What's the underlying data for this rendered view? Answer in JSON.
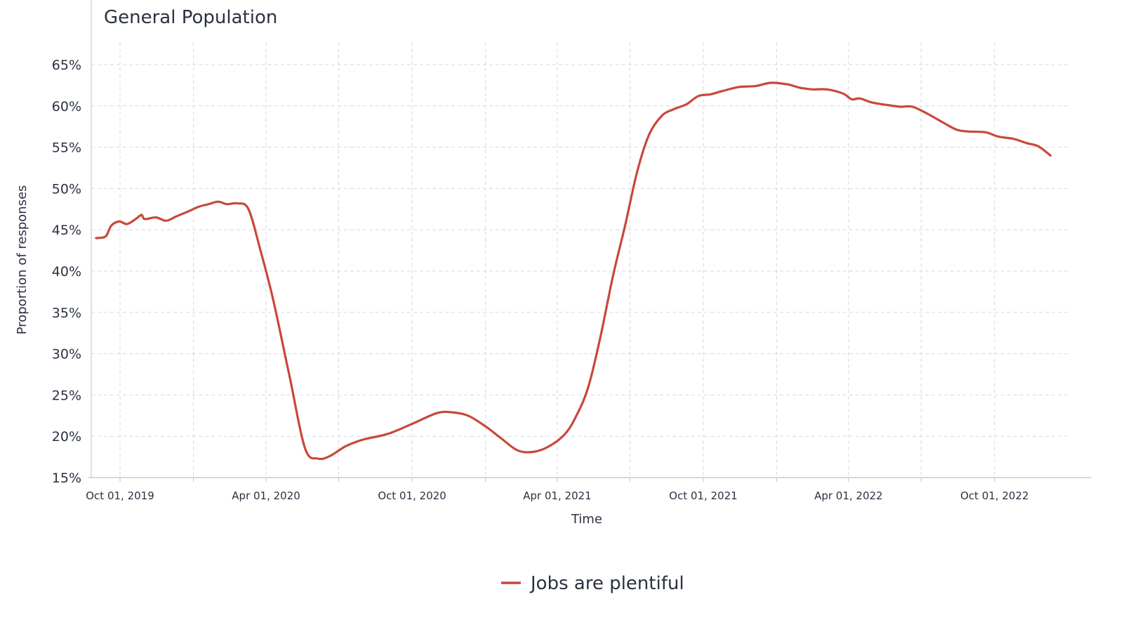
{
  "chart_data": {
    "type": "line",
    "title": "General Population",
    "xlabel": "Time",
    "ylabel": "Proportion of responses",
    "x_range": [
      "2019-08-20",
      "2023-02-15"
    ],
    "ylim": [
      15,
      65
    ],
    "y_ticks": [
      15,
      20,
      25,
      30,
      35,
      40,
      45,
      50,
      55,
      60,
      65
    ],
    "y_tick_labels": [
      "15%",
      "20%",
      "25%",
      "30%",
      "35%",
      "40%",
      "45%",
      "50%",
      "55%",
      "60%",
      "65%"
    ],
    "x_tick_labels": [
      "Oct 01, 2019",
      "Apr 01, 2020",
      "Oct 01, 2020",
      "Apr 01, 2021",
      "Oct 01, 2021",
      "Apr 01, 2022",
      "Oct 01, 2022"
    ],
    "x_tick_dates": [
      "2019-10-01",
      "2020-04-01",
      "2020-10-01",
      "2021-04-01",
      "2021-10-01",
      "2022-04-01",
      "2022-10-01"
    ],
    "x_grid_dates": [
      "2019-10-01",
      "2020-01-01",
      "2020-04-01",
      "2020-07-01",
      "2020-10-01",
      "2021-01-01",
      "2021-04-01",
      "2021-07-01",
      "2021-10-01",
      "2022-01-01",
      "2022-04-01",
      "2022-07-01",
      "2022-10-01"
    ],
    "grid": true,
    "legend_position": "bottom-center",
    "colors": {
      "series": "#c9483a",
      "grid": "#d4d9e0",
      "axis": "#c5ccd6",
      "text": "#2a3142"
    },
    "series": [
      {
        "name": "Jobs are plentiful",
        "points": [
          [
            "2019-09-01",
            44.0
          ],
          [
            "2019-09-13",
            44.2
          ],
          [
            "2019-09-20",
            45.5
          ],
          [
            "2019-09-30",
            46.0
          ],
          [
            "2019-10-10",
            45.7
          ],
          [
            "2019-10-22",
            46.4
          ],
          [
            "2019-10-28",
            46.8
          ],
          [
            "2019-11-01",
            46.3
          ],
          [
            "2019-11-15",
            46.5
          ],
          [
            "2019-11-28",
            46.1
          ],
          [
            "2019-12-10",
            46.6
          ],
          [
            "2019-12-25",
            47.2
          ],
          [
            "2020-01-08",
            47.8
          ],
          [
            "2020-01-20",
            48.1
          ],
          [
            "2020-02-01",
            48.4
          ],
          [
            "2020-02-12",
            48.1
          ],
          [
            "2020-02-25",
            48.2
          ],
          [
            "2020-03-10",
            47.5
          ],
          [
            "2020-03-25",
            42.5
          ],
          [
            "2020-04-10",
            36.5
          ],
          [
            "2020-05-01",
            27.0
          ],
          [
            "2020-05-20",
            18.5
          ],
          [
            "2020-06-05",
            17.3
          ],
          [
            "2020-06-20",
            17.6
          ],
          [
            "2020-07-10",
            18.8
          ],
          [
            "2020-08-01",
            19.6
          ],
          [
            "2020-09-01",
            20.3
          ],
          [
            "2020-10-01",
            21.5
          ],
          [
            "2020-11-01",
            22.8
          ],
          [
            "2020-11-20",
            22.9
          ],
          [
            "2020-12-10",
            22.5
          ],
          [
            "2021-01-01",
            21.2
          ],
          [
            "2021-01-20",
            19.8
          ],
          [
            "2021-02-10",
            18.3
          ],
          [
            "2021-03-01",
            18.1
          ],
          [
            "2021-03-20",
            18.7
          ],
          [
            "2021-04-10",
            20.2
          ],
          [
            "2021-04-25",
            22.5
          ],
          [
            "2021-05-10",
            26.0
          ],
          [
            "2021-05-25",
            32.0
          ],
          [
            "2021-06-10",
            39.5
          ],
          [
            "2021-06-25",
            45.5
          ],
          [
            "2021-07-10",
            52.0
          ],
          [
            "2021-07-25",
            56.5
          ],
          [
            "2021-08-10",
            58.8
          ],
          [
            "2021-08-25",
            59.6
          ],
          [
            "2021-09-10",
            60.2
          ],
          [
            "2021-09-25",
            61.2
          ],
          [
            "2021-10-10",
            61.4
          ],
          [
            "2021-10-25",
            61.8
          ],
          [
            "2021-11-15",
            62.3
          ],
          [
            "2021-12-05",
            62.4
          ],
          [
            "2021-12-25",
            62.8
          ],
          [
            "2022-01-15",
            62.6
          ],
          [
            "2022-01-30",
            62.2
          ],
          [
            "2022-02-15",
            62.0
          ],
          [
            "2022-03-05",
            62.0
          ],
          [
            "2022-03-25",
            61.5
          ],
          [
            "2022-04-05",
            60.8
          ],
          [
            "2022-04-15",
            60.9
          ],
          [
            "2022-05-01",
            60.4
          ],
          [
            "2022-05-20",
            60.1
          ],
          [
            "2022-06-05",
            59.9
          ],
          [
            "2022-06-20",
            59.9
          ],
          [
            "2022-07-10",
            59.0
          ],
          [
            "2022-07-30",
            57.9
          ],
          [
            "2022-08-15",
            57.1
          ],
          [
            "2022-08-30",
            56.9
          ],
          [
            "2022-09-20",
            56.8
          ],
          [
            "2022-10-05",
            56.3
          ],
          [
            "2022-10-25",
            56.0
          ],
          [
            "2022-11-10",
            55.5
          ],
          [
            "2022-11-25",
            55.1
          ],
          [
            "2022-12-10",
            54.0
          ]
        ]
      }
    ]
  }
}
